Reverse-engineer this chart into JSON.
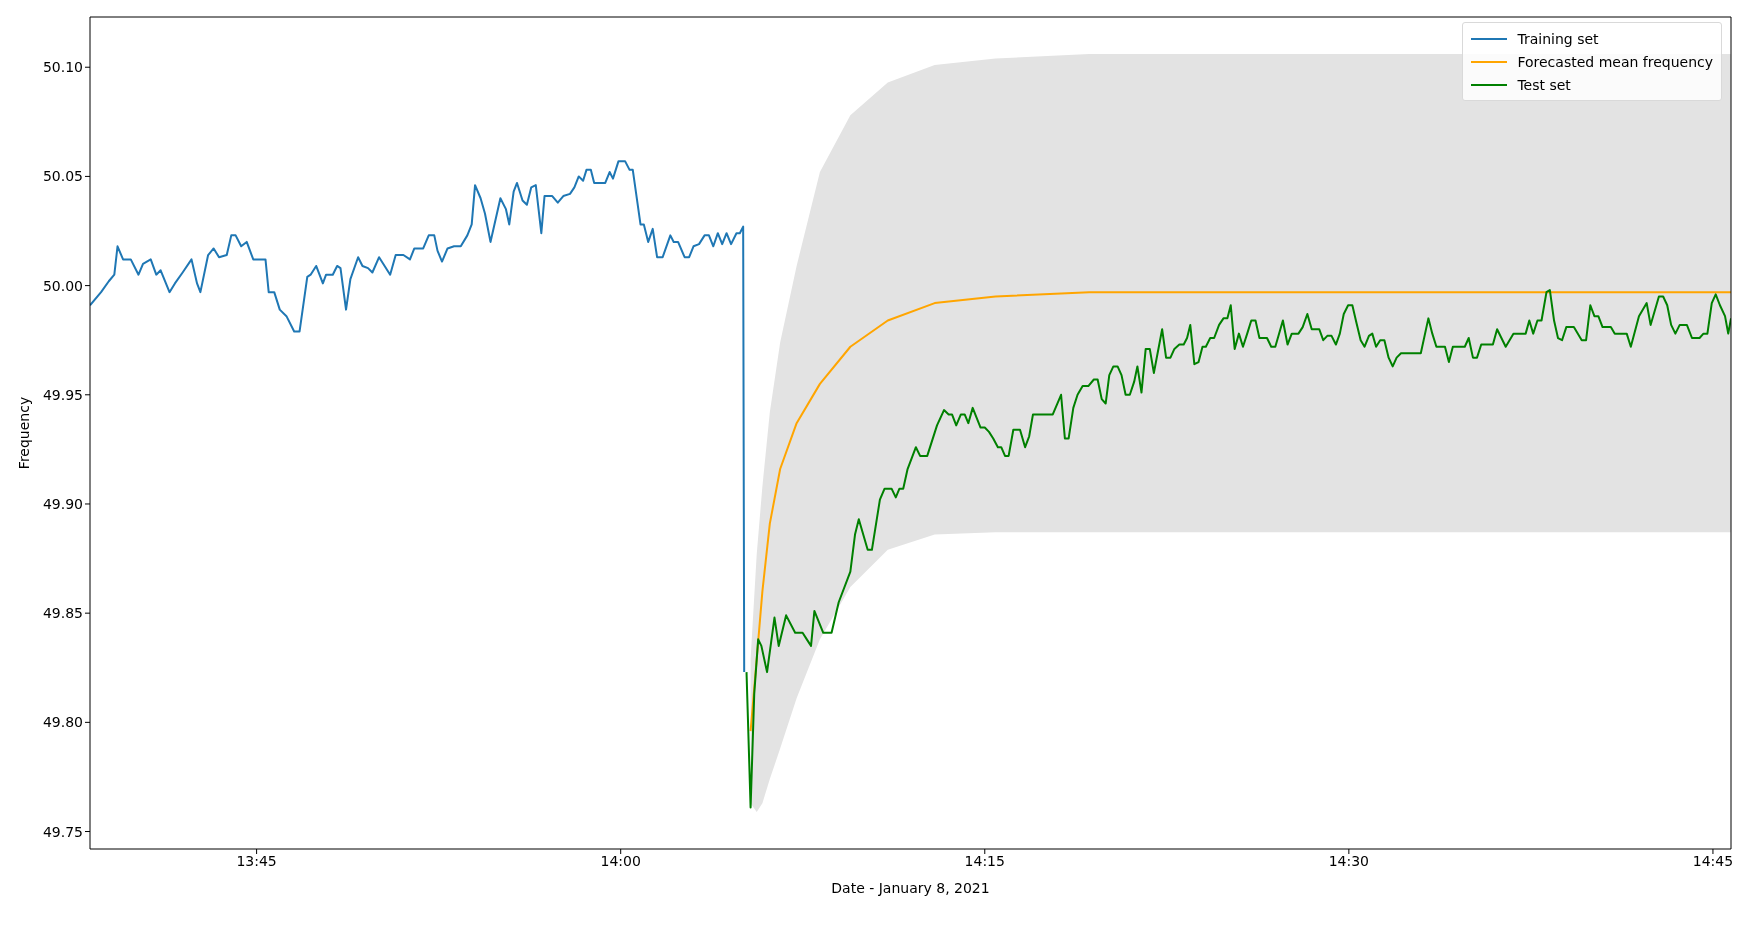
{
  "chart_data": {
    "type": "line",
    "xlabel": "Date - January 8, 2021",
    "ylabel": "Frequency",
    "legend": "top right",
    "xlim": [
      13.6356,
      14.7624
    ],
    "xticks": [
      {
        "value": 13.75,
        "label": "13:45"
      },
      {
        "value": 14,
        "label": "14:00"
      },
      {
        "value": 14.25,
        "label": "14:15"
      },
      {
        "value": 14.5,
        "label": "14:30"
      },
      {
        "value": 14.75,
        "label": "14:45"
      }
    ],
    "ylim": [
      49.742,
      50.123
    ],
    "yticks": [
      {
        "value": 49.75,
        "label": "49.75"
      },
      {
        "value": 49.8,
        "label": "49.80"
      },
      {
        "value": 49.85,
        "label": "49.85"
      },
      {
        "value": 49.9,
        "label": "49.90"
      },
      {
        "value": 49.95,
        "label": "49.95"
      },
      {
        "value": 50,
        "label": "50.00"
      },
      {
        "value": 50.05,
        "label": "50.05"
      },
      {
        "value": 50.1,
        "label": "50.10"
      }
    ],
    "series": [
      {
        "name": "Training set",
        "color": "#1f77b4",
        "x": [
          13.6356,
          13.6432,
          13.6485,
          13.6523,
          13.6545,
          13.6583,
          13.6636,
          13.6689,
          13.672,
          13.6773,
          13.6811,
          13.6841,
          13.6902,
          13.6939,
          13.6992,
          13.7053,
          13.7091,
          13.7114,
          13.7167,
          13.7205,
          13.7242,
          13.7295,
          13.7326,
          13.7356,
          13.7394,
          13.7432,
          13.7477,
          13.7561,
          13.7583,
          13.7621,
          13.7659,
          13.7705,
          13.7758,
          13.7795,
          13.7848,
          13.7871,
          13.7909,
          13.7955,
          13.7977,
          13.8023,
          13.8053,
          13.8076,
          13.8114,
          13.8144,
          13.8197,
          13.8227,
          13.8265,
          13.8295,
          13.8341,
          13.8379,
          13.8417,
          13.8455,
          13.8508,
          13.8553,
          13.8583,
          13.8644,
          13.8682,
          13.872,
          13.8742,
          13.8773,
          13.8811,
          13.8856,
          13.8902,
          13.8947,
          13.8977,
          13.9,
          13.9038,
          13.9068,
          13.9106,
          13.9174,
          13.9212,
          13.9235,
          13.9265,
          13.9288,
          13.9326,
          13.9356,
          13.9386,
          13.9417,
          13.9455,
          13.9477,
          13.953,
          13.9568,
          13.9606,
          13.9652,
          13.9682,
          13.9712,
          13.9742,
          13.9765,
          13.9795,
          13.9818,
          13.9894,
          13.9924,
          13.9947,
          13.9985,
          14.003,
          14.0061,
          14.0083,
          14.0136,
          14.0159,
          14.0189,
          14.022,
          14.025,
          14.0288,
          14.0341,
          14.0364,
          14.0394,
          14.0439,
          14.047,
          14.05,
          14.0538,
          14.0576,
          14.0606,
          14.0636,
          14.0667,
          14.0697,
          14.0727,
          14.0758,
          14.0795,
          14.0818,
          14.0841,
          14.0848
        ],
        "values": [
          49.991,
          49.997,
          50.002,
          50.005,
          50.018,
          50.012,
          50.012,
          50.005,
          50.01,
          50.012,
          50.005,
          50.007,
          49.997,
          50.001,
          50.006,
          50.012,
          50.001,
          49.997,
          50.014,
          50.017,
          50.013,
          50.014,
          50.023,
          50.023,
          50.018,
          50.02,
          50.012,
          50.012,
          49.997,
          49.997,
          49.989,
          49.986,
          49.979,
          49.979,
          50.004,
          50.005,
          50.009,
          50.001,
          50.005,
          50.005,
          50.009,
          50.008,
          49.989,
          50.003,
          50.013,
          50.009,
          50.008,
          50.006,
          50.013,
          50.009,
          50.005,
          50.014,
          50.014,
          50.012,
          50.017,
          50.017,
          50.023,
          50.023,
          50.016,
          50.011,
          50.017,
          50.018,
          50.018,
          50.023,
          50.028,
          50.046,
          50.04,
          50.033,
          50.02,
          50.04,
          50.035,
          50.028,
          50.043,
          50.047,
          50.039,
          50.037,
          50.045,
          50.046,
          50.024,
          50.041,
          50.041,
          50.038,
          50.041,
          50.042,
          50.045,
          50.05,
          50.048,
          50.053,
          50.053,
          50.047,
          50.047,
          50.052,
          50.049,
          50.057,
          50.057,
          50.053,
          50.053,
          50.028,
          50.028,
          50.02,
          50.026,
          50.013,
          50.013,
          50.023,
          50.02,
          50.02,
          50.013,
          50.013,
          50.018,
          50.019,
          50.023,
          50.023,
          50.018,
          50.024,
          50.019,
          50.024,
          50.019,
          50.024,
          50.024,
          50.027,
          49.823
        ]
      },
      {
        "name": "Forecasted mean frequency",
        "color": "#ffa500",
        "x": [
          14.0892,
          14.0934,
          14.0973,
          14.1024,
          14.1095,
          14.1208,
          14.1368,
          14.1577,
          14.1834,
          14.2156,
          14.2574,
          14.3217,
          14.7624
        ],
        "values": [
          49.796,
          49.829,
          49.86,
          49.891,
          49.916,
          49.937,
          49.955,
          49.972,
          49.984,
          49.992,
          49.995,
          49.997,
          49.997
        ],
        "lower": [
          49.763,
          49.759,
          49.763,
          49.774,
          49.788,
          49.811,
          49.838,
          49.862,
          49.879,
          49.886,
          49.887,
          49.887,
          49.887
        ],
        "upper": [
          49.829,
          49.877,
          49.908,
          49.942,
          49.974,
          50.009,
          50.052,
          50.078,
          50.093,
          50.101,
          50.104,
          50.106,
          50.106
        ]
      },
      {
        "name": "Test set",
        "color": "#008000",
        "x": [
          14.0864,
          14.0892,
          14.0917,
          14.0944,
          14.0966,
          14.1005,
          14.1056,
          14.1085,
          14.1136,
          14.1198,
          14.1249,
          14.1278,
          14.1307,
          14.133,
          14.1391,
          14.1417,
          14.1448,
          14.1497,
          14.1577,
          14.1609,
          14.1635,
          14.1696,
          14.1725,
          14.178,
          14.1812,
          14.186,
          14.1889,
          14.1914,
          14.194,
          14.197,
          14.2027,
          14.2056,
          14.2105,
          14.2172,
          14.222,
          14.2252,
          14.2275,
          14.2304,
          14.2336,
          14.2362,
          14.2387,
          14.2417,
          14.2471,
          14.25,
          14.2529,
          14.2558,
          14.259,
          14.2613,
          14.2639,
          14.2664,
          14.2696,
          14.2742,
          14.2777,
          14.2805,
          14.2831,
          14.2967,
          14.3024,
          14.305,
          14.3076,
          14.3108,
          14.3137,
          14.3172,
          14.3211,
          14.3249,
          14.3275,
          14.3303,
          14.333,
          14.3355,
          14.3383,
          14.3412,
          14.3439,
          14.3467,
          14.3496,
          14.3526,
          14.3548,
          14.3576,
          14.3605,
          14.3633,
          14.3661,
          14.3718,
          14.3745,
          14.3775,
          14.3802,
          14.3836,
          14.3866,
          14.3889,
          14.3911,
          14.3939,
          14.3968,
          14.3995,
          14.4018,
          14.4048,
          14.4075,
          14.4109,
          14.4139,
          14.4166,
          14.4189,
          14.4216,
          14.4245,
          14.4273,
          14.4302,
          14.433,
          14.4359,
          14.4386,
          14.4438,
          14.4467,
          14.4495,
          14.4547,
          14.4579,
          14.4608,
          14.4654,
          14.4683,
          14.4715,
          14.4745,
          14.4797,
          14.4824,
          14.4852,
          14.4881,
          14.4911,
          14.4938,
          14.4965,
          14.4995,
          14.5024,
          14.5052,
          14.5081,
          14.5108,
          14.5138,
          14.5161,
          14.5187,
          14.5215,
          14.5244,
          14.5273,
          14.5301,
          14.5328,
          14.5358,
          14.5494,
          14.5546,
          14.5573,
          14.5601,
          14.566,
          14.5687,
          14.5714,
          14.5796,
          14.5823,
          14.5852,
          14.588,
          14.5909,
          14.5989,
          14.6018,
          14.6077,
          14.613,
          14.6214,
          14.6239,
          14.6266,
          14.6295,
          14.6323,
          14.6357,
          14.638,
          14.6409,
          14.6436,
          14.6464,
          14.6493,
          14.6545,
          14.6599,
          14.6629,
          14.6658,
          14.6686,
          14.6713,
          14.6742,
          14.6799,
          14.6826,
          14.6908,
          14.6936,
          14.6992,
          14.7045,
          14.7072,
          14.7129,
          14.7158,
          14.7186,
          14.7213,
          14.7242,
          14.7272,
          14.7321,
          14.7356,
          14.7408,
          14.7435,
          14.7462,
          14.7492,
          14.7519,
          14.7548,
          14.7583,
          14.7605,
          14.7624
        ],
        "values": [
          49.823,
          49.761,
          49.813,
          49.838,
          49.835,
          49.823,
          49.848,
          49.835,
          49.849,
          49.841,
          49.841,
          49.838,
          49.835,
          49.851,
          49.841,
          49.841,
          49.841,
          49.855,
          49.869,
          49.886,
          49.893,
          49.879,
          49.879,
          49.902,
          49.907,
          49.907,
          49.903,
          49.907,
          49.907,
          49.916,
          49.926,
          49.922,
          49.922,
          49.936,
          49.943,
          49.941,
          49.941,
          49.936,
          49.941,
          49.941,
          49.937,
          49.944,
          49.935,
          49.935,
          49.933,
          49.93,
          49.926,
          49.926,
          49.922,
          49.922,
          49.934,
          49.934,
          49.926,
          49.931,
          49.941,
          49.941,
          49.95,
          49.93,
          49.93,
          49.944,
          49.95,
          49.954,
          49.954,
          49.957,
          49.957,
          49.948,
          49.946,
          49.959,
          49.963,
          49.963,
          49.959,
          49.95,
          49.95,
          49.956,
          49.963,
          49.951,
          49.971,
          49.971,
          49.96,
          49.98,
          49.967,
          49.967,
          49.971,
          49.973,
          49.973,
          49.976,
          49.982,
          49.964,
          49.965,
          49.972,
          49.972,
          49.976,
          49.976,
          49.982,
          49.985,
          49.985,
          49.991,
          49.971,
          49.978,
          49.972,
          49.978,
          49.984,
          49.984,
          49.976,
          49.976,
          49.972,
          49.972,
          49.984,
          49.973,
          49.978,
          49.978,
          49.981,
          49.987,
          49.98,
          49.98,
          49.975,
          49.977,
          49.977,
          49.973,
          49.978,
          49.987,
          49.991,
          49.991,
          49.983,
          49.975,
          49.972,
          49.977,
          49.978,
          49.972,
          49.975,
          49.975,
          49.967,
          49.963,
          49.967,
          49.969,
          49.969,
          49.985,
          49.978,
          49.972,
          49.972,
          49.965,
          49.972,
          49.972,
          49.976,
          49.967,
          49.967,
          49.973,
          49.973,
          49.98,
          49.972,
          49.978,
          49.978,
          49.984,
          49.978,
          49.984,
          49.984,
          49.997,
          49.998,
          49.984,
          49.976,
          49.975,
          49.981,
          49.981,
          49.975,
          49.975,
          49.991,
          49.986,
          49.986,
          49.981,
          49.981,
          49.978,
          49.978,
          49.972,
          49.986,
          49.992,
          49.982,
          49.995,
          49.995,
          49.991,
          49.982,
          49.978,
          49.982,
          49.982,
          49.976,
          49.976,
          49.978,
          49.978,
          49.992,
          49.996,
          49.991,
          49.986,
          49.978,
          49.985
        ]
      }
    ]
  }
}
